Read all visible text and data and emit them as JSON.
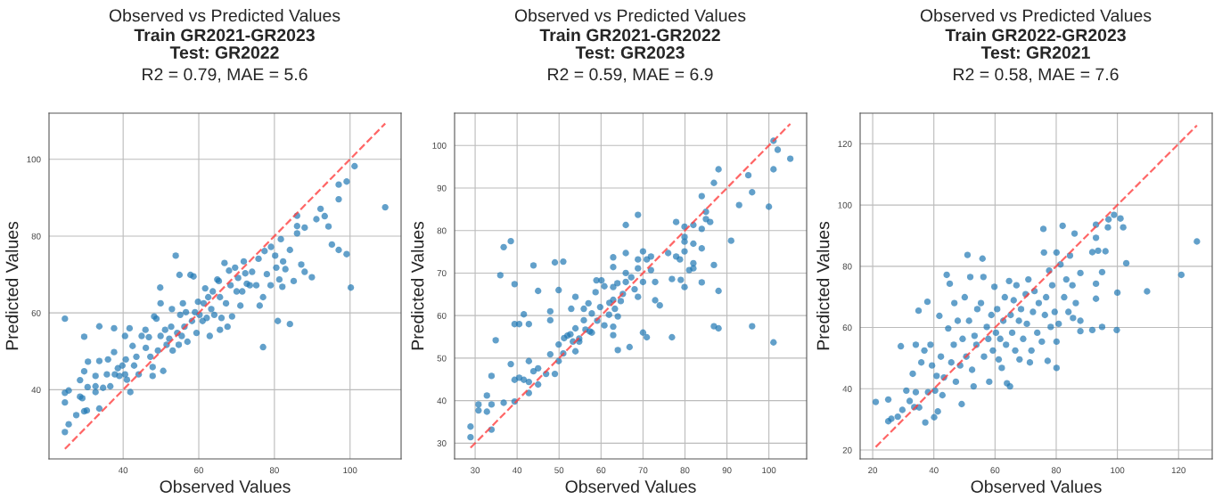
{
  "chart_data": [
    {
      "type": "scatter",
      "title": "Observed vs Predicted Values",
      "subtitle": "Train GR2021-GR2023\nTest: GR2022",
      "annotations": [
        "R2 = 0.79, MAE = 5.6"
      ],
      "xlabel": "Observed Values",
      "ylabel": "Predicted Values",
      "xlim": [
        20.4,
        113.5
      ],
      "ylim": [
        22,
        112
      ],
      "xticks": [
        40,
        60,
        80,
        100
      ],
      "yticks": [
        40,
        60,
        80,
        100
      ],
      "grid": true,
      "marker": "circle",
      "series": [
        {
          "color": "#1f77b4",
          "x": [
            24.6,
            24.6,
            24.6,
            24.6,
            25.6,
            25.6,
            27.6,
            28.6,
            28.6,
            29.2,
            29.7,
            29.7,
            29.7,
            30.4,
            30.6,
            30.7,
            32.7,
            32.7,
            32.7,
            33.7,
            33.7,
            33.7,
            34.7,
            35.7,
            36,
            36.6,
            37.6,
            37.6,
            37.8,
            38.6,
            39,
            39.8,
            40.5,
            40.5,
            40.7,
            41,
            41.7,
            41.9,
            42.5,
            42.9,
            43.5,
            44.1,
            44.9,
            45.9,
            46,
            46.8,
            47.2,
            47.8,
            47.8,
            48.2,
            48.8,
            49.2,
            49.8,
            49.9,
            49.9,
            50.6,
            51.1,
            51.5,
            52.2,
            52.7,
            52.9,
            53.1,
            53.9,
            54.3,
            54.7,
            54.9,
            55.1,
            55.5,
            55.8,
            56.2,
            56.6,
            57,
            57.8,
            58.2,
            58.6,
            59,
            59.4,
            59.8,
            60.2,
            61,
            61.3,
            61.7,
            62.1,
            62.5,
            62.9,
            63.3,
            63.7,
            64.1,
            64.9,
            65.3,
            65.6,
            65.6,
            66,
            66.8,
            67.2,
            67.6,
            68,
            68.4,
            68.8,
            69.6,
            70,
            70.4,
            71,
            71.5,
            71.9,
            72.3,
            72.7,
            73.5,
            74.1,
            75.2,
            75.8,
            76.1,
            77,
            77,
            77.4,
            78,
            79,
            79.1,
            80.2,
            80.5,
            80.9,
            81.3,
            81.7,
            82.1,
            82.3,
            82.9,
            84.1,
            84.1,
            85.1,
            86,
            86,
            86,
            87.1,
            88,
            88,
            89.9,
            91.1,
            92.2,
            93.3,
            94.3,
            95.2,
            97,
            97,
            97,
            99.1,
            99.1,
            100.2,
            101.2,
            109.3
          ],
          "values": [
            58.5,
            39.2,
            36.7,
            29,
            39.8,
            31,
            33.4,
            42.5,
            38.2,
            37.8,
            53.8,
            44.8,
            34.4,
            34.6,
            40.7,
            47.3,
            43.6,
            40.9,
            39.4,
            56.5,
            35.1,
            47.5,
            40.5,
            44,
            47.9,
            40.9,
            56,
            49.8,
            44,
            45.6,
            43.6,
            46.3,
            54,
            44,
            47.9,
            42.6,
            56,
            39.4,
            51.4,
            46.3,
            48.6,
            44,
            54,
            55.6,
            50.9,
            53.7,
            48.6,
            43.6,
            45.9,
            59.1,
            58.5,
            50.2,
            66.6,
            62.5,
            54,
            44.9,
            55.6,
            51.7,
            53.3,
            56.4,
            61,
            50.2,
            74.9,
            54.8,
            51.7,
            69.9,
            59.5,
            54,
            62.5,
            56.4,
            60.2,
            52.5,
            69.9,
            57.9,
            69.5,
            60.2,
            54.8,
            62.9,
            59.5,
            57.9,
            62.5,
            66.4,
            58.7,
            64.1,
            54,
            61,
            65.6,
            59.5,
            68.7,
            68.3,
            64.1,
            55.6,
            58.7,
            73,
            62.5,
            56.4,
            71,
            67.2,
            59.1,
            71.8,
            65.6,
            69.1,
            61.9,
            65.6,
            73.4,
            70.3,
            67.6,
            67.2,
            70.7,
            67.2,
            74.1,
            61.9,
            64.1,
            51.1,
            76.1,
            70.1,
            67.2,
            77.2,
            74.9,
            71.8,
            57.9,
            68.7,
            79.2,
            66.8,
            73.4,
            71.4,
            76.4,
            57.1,
            68.3,
            85.3,
            80.7,
            82.6,
            72.6,
            82.2,
            70.7,
            69.3,
            84.4,
            87.1,
            85.2,
            82.5,
            77.8,
            93.4,
            89.6,
            76.4,
            94.2,
            75.3,
            66.6,
            98.2,
            87.5
          ]
        },
        {
          "type": "line",
          "color": "#ff4040",
          "line_style": "dashed",
          "marker": "none",
          "x": [
            24.6,
            109.3
          ],
          "values": [
            24.6,
            109.3
          ]
        }
      ]
    },
    {
      "type": "scatter",
      "title": "Observed vs Predicted Values",
      "subtitle": "Train GR2021-GR2022\nTest: GR2023",
      "annotations": [
        "R2 = 0.59, MAE = 6.9"
      ],
      "xlabel": "Observed Values",
      "ylabel": "Predicted Values",
      "xlim": [
        25.1,
        109
      ],
      "ylim": [
        26.3,
        107.6
      ],
      "xticks": [
        30,
        40,
        50,
        60,
        70,
        80,
        90,
        100
      ],
      "yticks": [
        30,
        40,
        50,
        60,
        70,
        80,
        90,
        100
      ],
      "grid": true,
      "marker": "circle",
      "series": [
        {
          "color": "#1f77b4",
          "x": [
            28.9,
            28.9,
            30.8,
            30.8,
            32.8,
            32.8,
            33.9,
            33.9,
            33.9,
            34.9,
            36,
            36.8,
            36.8,
            38.5,
            38.5,
            39.4,
            39.4,
            39.4,
            39.4,
            40.5,
            40.5,
            41.6,
            41.6,
            42.8,
            42.8,
            42.8,
            42.8,
            43.9,
            43.9,
            45,
            45,
            45,
            46.9,
            47.9,
            47.9,
            47.9,
            49,
            49,
            49.9,
            49.9,
            49.9,
            51,
            51,
            51.2,
            52,
            52.7,
            52.9,
            53.3,
            53.9,
            53.9,
            53.9,
            54.8,
            54.8,
            55.9,
            55.9,
            56.3,
            57,
            57.3,
            57.8,
            57.8,
            58.7,
            58.9,
            59.1,
            59.8,
            60.1,
            60.8,
            60.8,
            61.9,
            62,
            62.9,
            62.9,
            62.9,
            62.9,
            62.9,
            62.9,
            63.3,
            63.9,
            64,
            64,
            64.7,
            65.2,
            65.9,
            65.9,
            65.9,
            65.9,
            66.8,
            67.2,
            68,
            68.8,
            68.8,
            68.8,
            68.8,
            70,
            70,
            70,
            70.9,
            70.9,
            71.9,
            71.9,
            72.9,
            72.9,
            74,
            76,
            76.9,
            76.9,
            77.9,
            77.9,
            78.8,
            79,
            79.9,
            79.9,
            79.9,
            79.9,
            79.9,
            81,
            82,
            82,
            82,
            82,
            84,
            84,
            84,
            84,
            85,
            85,
            86,
            86.9,
            86.9,
            86.9,
            88,
            88,
            88,
            91,
            92.9,
            95.1,
            96,
            96,
            100,
            101.1,
            101.1,
            101.1,
            102.1,
            105.1
          ],
          "values": [
            33.9,
            31.4,
            39.1,
            37.7,
            37.4,
            41.2,
            45.8,
            39.1,
            33.2,
            54.2,
            69.5,
            76.1,
            39.5,
            77.5,
            48.6,
            67.4,
            58,
            44.9,
            39.8,
            58,
            45.4,
            60.3,
            44.9,
            49.3,
            58,
            44.4,
            41.8,
            71.8,
            46.9,
            65.8,
            47.6,
            43.8,
            46.3,
            61,
            58.9,
            50.9,
            72.5,
            46.3,
            66,
            53.2,
            49.3,
            72.7,
            51.1,
            54.7,
            55.3,
            55.6,
            61.6,
            53.9,
            64.4,
            57,
            51.6,
            53.9,
            54.6,
            61.6,
            58.9,
            56.7,
            62.9,
            56.3,
            60.5,
            56,
            65.5,
            68.3,
            58.8,
            62,
            68.3,
            57.7,
            66.9,
            60.2,
            63,
            73.7,
            71.4,
            66.7,
            63.7,
            57.4,
            55.4,
            61.6,
            67.6,
            59.8,
            51.9,
            63.4,
            65.1,
            74.7,
            70,
            67.9,
            81.3,
            52.6,
            69,
            66.2,
            83.7,
            73.2,
            71.1,
            64.4,
            75.1,
            67.9,
            56,
            73.2,
            54.9,
            73.9,
            70.7,
            67.9,
            63.6,
            62.4,
            74.7,
            68.6,
            54.9,
            82,
            73.9,
            73.2,
            68.4,
            80.9,
            78.5,
            77.4,
            75.1,
            66.7,
            70.7,
            81.3,
            76.9,
            72.3,
            71.1,
            88.1,
            75.8,
            67.8,
            80.4,
            84.4,
            82.7,
            82,
            91.2,
            71.9,
            57.5,
            94.4,
            65.8,
            57,
            77.6,
            86,
            93,
            89,
            57.5,
            85.6,
            101.1,
            94.4,
            53.7,
            99,
            96.9
          ]
        },
        {
          "type": "line",
          "color": "#ff4040",
          "line_style": "dashed",
          "marker": "none",
          "x": [
            28.9,
            105.1
          ],
          "values": [
            28.9,
            105.1
          ]
        }
      ]
    },
    {
      "type": "scatter",
      "title": "Observed vs Predicted Values",
      "subtitle": "Train GR2022-GR2023\nTest: GR2021",
      "annotations": [
        "R2 = 0.58, MAE = 7.6"
      ],
      "xlabel": "Observed Values",
      "ylabel": "Predicted Values",
      "xlim": [
        15.9,
        131
      ],
      "ylim": [
        17.1,
        130
      ],
      "xticks": [
        20,
        40,
        60,
        80,
        100,
        120
      ],
      "yticks": [
        20,
        40,
        60,
        80,
        100,
        120
      ],
      "grid": true,
      "marker": "circle",
      "series": [
        {
          "color": "#1f77b4",
          "x": [
            21,
            25.1,
            25.1,
            26.1,
            28.2,
            29.2,
            29.7,
            31,
            32.1,
            33.1,
            33.6,
            34.1,
            34.1,
            35,
            35.2,
            35.9,
            36.9,
            37.2,
            37.9,
            38.1,
            38.9,
            39.4,
            40.1,
            40.4,
            40.9,
            41.3,
            41.8,
            42.3,
            42.8,
            43.3,
            44.2,
            44.7,
            45.2,
            45.7,
            46.5,
            46.7,
            47.2,
            47.8,
            48.6,
            49.1,
            49.4,
            50.1,
            50.6,
            51,
            51.5,
            51.9,
            52.5,
            53,
            53.3,
            53.9,
            54.2,
            55.4,
            55.9,
            56.2,
            56.4,
            57.3,
            57.8,
            58.1,
            58.8,
            59.3,
            59.8,
            60.3,
            60.7,
            61.2,
            61.7,
            62.2,
            62.7,
            63.2,
            63.6,
            63.9,
            64.6,
            64.9,
            65.1,
            65.6,
            66.1,
            66.6,
            67,
            67.8,
            68,
            68.5,
            69.2,
            70,
            70.4,
            70.9,
            71.4,
            71.9,
            72.4,
            72.9,
            73.8,
            74.3,
            75.3,
            75.8,
            76,
            76.3,
            76.7,
            77.2,
            77.7,
            78.2,
            78.7,
            79.5,
            80.1,
            80.1,
            80.1,
            80.8,
            81.4,
            82.1,
            82.6,
            83.3,
            84,
            84.5,
            85.3,
            85.5,
            86,
            86.4,
            87.9,
            87.9,
            87.9,
            91.8,
            91.8,
            93,
            93,
            93,
            93,
            93.7,
            95,
            95,
            96.1,
            96.9,
            97.1,
            98.9,
            99.8,
            100,
            101,
            101.9,
            102.9,
            109.7,
            120.9,
            126
          ],
          "values": [
            35.7,
            36.5,
            29.4,
            30.2,
            30.9,
            53.9,
            33.1,
            39.4,
            36,
            44.9,
            34,
            54.4,
            38.9,
            65.5,
            33.9,
            48.6,
            52.5,
            29,
            68.4,
            38.9,
            54.4,
            47.6,
            30.7,
            39.4,
            44.2,
            32.6,
            63.8,
            50.5,
            37.9,
            43.7,
            77.2,
            59.7,
            74.3,
            48.6,
            54.4,
            68,
            42.3,
            62.2,
            47.6,
            35,
            56.3,
            69.9,
            50.5,
            83.7,
            62.2,
            76.5,
            46.2,
            40.8,
            57.3,
            54.4,
            66,
            68,
            82.5,
            76.5,
            50.5,
            60.2,
            56.3,
            42.3,
            64.1,
            52.5,
            73.3,
            58.3,
            66,
            49.6,
            56.3,
            46.8,
            62.2,
            69.9,
            54.4,
            41.8,
            75.2,
            40.8,
            64.1,
            58.3,
            68.9,
            52.5,
            73.8,
            62.2,
            49.6,
            66,
            56.3,
            70.9,
            61.2,
            75.7,
            48.6,
            52.5,
            65.1,
            71.9,
            58.3,
            68,
            55.4,
            92.2,
            84.5,
            64.1,
            69.9,
            49.1,
            78.6,
            60.2,
            73.8,
            65.1,
            84.5,
            55.4,
            46.8,
            61.2,
            80.6,
            93.2,
            69.9,
            75.7,
            65.1,
            83.5,
            73.8,
            63.1,
            90.7,
            68,
            77.8,
            62.2,
            58.8,
            59.2,
            84.6,
            93.6,
            89.3,
            74.3,
            69.4,
            85.1,
            78.1,
            60.2,
            84.9,
            92.7,
            95.3,
            96.8,
            59.2,
            71.4,
            95.6,
            92.7,
            81,
            71.8,
            77.2,
            88.1
          ]
        },
        {
          "type": "line",
          "color": "#ff4040",
          "line_style": "dashed",
          "marker": "none",
          "x": [
            21,
            126
          ],
          "values": [
            21,
            126
          ]
        }
      ]
    }
  ]
}
